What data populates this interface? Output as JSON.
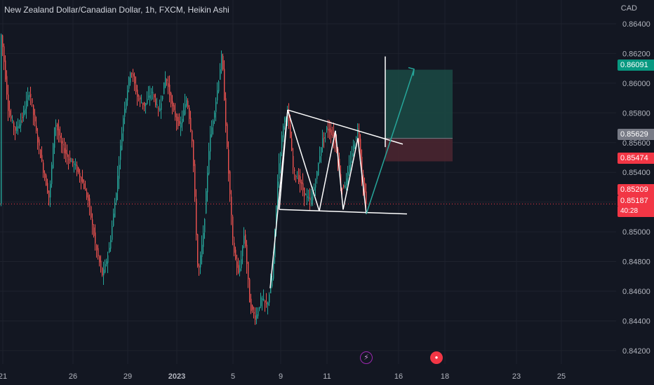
{
  "header": {
    "title": "New Zealand Dollar/Canadian Dollar, 1h, FXCM, Heikin Ashi",
    "currency": "CAD"
  },
  "price_tags": {
    "target": "0.86091",
    "entry": "0.85629",
    "stop": "0.85474",
    "high": "0.85209",
    "current": "0.85187",
    "countdown": "40:28"
  },
  "events": [
    {
      "name": "flash-event-icon",
      "glyph": "⚡"
    },
    {
      "name": "flag-event-icon",
      "glyph": "●"
    }
  ],
  "colors": {
    "background": "#131722",
    "bull": "#26a69a",
    "bear": "#ef5350",
    "target_zone": "#1b4a44",
    "stop_zone": "#4a2530",
    "entry_tag": "#787b86",
    "target_tag": "#089981",
    "stop_tag": "#f23645",
    "drawing": "#ffffff"
  },
  "chart_data": {
    "type": "candlestick",
    "style": "Heikin Ashi",
    "symbol": "NZDCAD",
    "timeframe": "1h",
    "ylim": [
      0.8411,
      0.8656
    ],
    "y_ticks": [
      "0.84200",
      "0.84400",
      "0.84600",
      "0.84800",
      "0.85000",
      "0.85200",
      "0.85400",
      "0.85600",
      "0.85800",
      "0.86000",
      "0.86200",
      "0.86400"
    ],
    "x_ticks": [
      "21",
      "26",
      "29",
      "2023",
      "5",
      "9",
      "11",
      "16",
      "18",
      "23",
      "25"
    ],
    "price_path": [
      [
        0,
        0.8638
      ],
      [
        4,
        0.8622
      ],
      [
        12,
        0.858
      ],
      [
        22,
        0.8568
      ],
      [
        32,
        0.8578
      ],
      [
        42,
        0.8595
      ],
      [
        52,
        0.8565
      ],
      [
        62,
        0.854
      ],
      [
        70,
        0.8522
      ],
      [
        78,
        0.8575
      ],
      [
        86,
        0.856
      ],
      [
        96,
        0.855
      ],
      [
        106,
        0.8545
      ],
      [
        116,
        0.8535
      ],
      [
        126,
        0.852
      ],
      [
        136,
        0.849
      ],
      [
        146,
        0.847
      ],
      [
        156,
        0.849
      ],
      [
        166,
        0.853
      ],
      [
        176,
        0.858
      ],
      [
        186,
        0.861
      ],
      [
        196,
        0.859
      ],
      [
        206,
        0.8585
      ],
      [
        216,
        0.8595
      ],
      [
        226,
        0.858
      ],
      [
        236,
        0.8605
      ],
      [
        246,
        0.8582
      ],
      [
        256,
        0.857
      ],
      [
        266,
        0.859
      ],
      [
        274,
        0.856
      ],
      [
        282,
        0.847
      ],
      [
        290,
        0.85
      ],
      [
        298,
        0.856
      ],
      [
        308,
        0.859
      ],
      [
        316,
        0.862
      ],
      [
        324,
        0.855
      ],
      [
        332,
        0.849
      ],
      [
        340,
        0.847
      ],
      [
        348,
        0.85
      ],
      [
        356,
        0.845
      ],
      [
        364,
        0.8442
      ],
      [
        372,
        0.8455
      ],
      [
        380,
        0.845
      ],
      [
        388,
        0.847
      ],
      [
        396,
        0.854
      ],
      [
        404,
        0.8575
      ],
      [
        410,
        0.858
      ],
      [
        418,
        0.854
      ],
      [
        426,
        0.8535
      ],
      [
        434,
        0.8525
      ],
      [
        442,
        0.852
      ],
      [
        450,
        0.8535
      ],
      [
        458,
        0.856
      ],
      [
        466,
        0.857
      ],
      [
        474,
        0.8565
      ],
      [
        480,
        0.8555
      ],
      [
        486,
        0.8528
      ],
      [
        494,
        0.8535
      ],
      [
        502,
        0.8555
      ],
      [
        510,
        0.857
      ],
      [
        516,
        0.8535
      ],
      [
        522,
        0.8519
      ]
    ],
    "annotations": {
      "entry": 0.85629,
      "target": 0.86091,
      "stop": 0.85474,
      "high_line": 0.85209,
      "last_price": 0.85187
    }
  }
}
